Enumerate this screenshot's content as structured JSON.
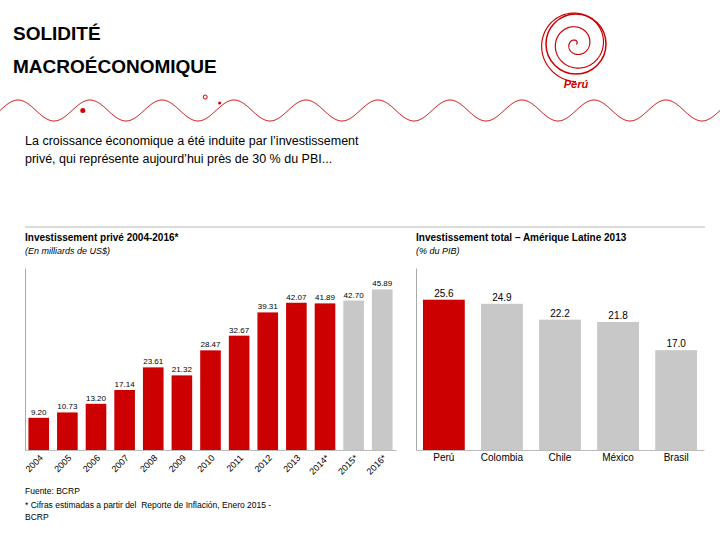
{
  "title": "SOLIDITÉ\nMACROÉCONOMIQUE",
  "subtitle": "La croissance économique a été induite par l’investissement\nprivé, qui représente aujourd’hui près de 30 % du PBI...",
  "annotations": [
    "Perú"
  ],
  "footnotes": [
    "Fuente: BCRP",
    "* Cifras estimadas a partir del  Reporte de Inflación, Enero 2015 -\nBCRP"
  ],
  "chart_data": [
    {
      "type": "bar",
      "title": "Investissement privé 2004-2016*",
      "subtitle": "(En milliards de US$)",
      "categories": [
        "2004",
        "2005",
        "2006",
        "2007",
        "2008",
        "2009",
        "2010",
        "2011",
        "2012",
        "2013",
        "2014*",
        "2015*",
        "2016*"
      ],
      "values": [
        9.2,
        10.73,
        13.2,
        17.14,
        23.61,
        21.32,
        28.47,
        32.67,
        39.31,
        42.07,
        41.89,
        42.7,
        45.89
      ],
      "value_labels": [
        "9.20",
        "10.73",
        "13.20",
        "17.14",
        "23.61",
        "21.32",
        "28.47",
        "32.67",
        "39.31",
        "42.07",
        "41.89",
        "42.70",
        "45.89"
      ],
      "colors": [
        "#cc0000",
        "#cc0000",
        "#cc0000",
        "#cc0000",
        "#cc0000",
        "#cc0000",
        "#cc0000",
        "#cc0000",
        "#cc0000",
        "#cc0000",
        "#cc0000",
        "#c8c8c8",
        "#c8c8c8"
      ],
      "ylim": [
        0,
        52
      ],
      "data_labels": true,
      "tick_labels": "x",
      "grid": false
    },
    {
      "type": "bar",
      "title": "Investissement total – Amérique Latine 2013",
      "subtitle": "(% du PIB)",
      "categories": [
        "Perú",
        "Colombia",
        "Chile",
        "México",
        "Brasil"
      ],
      "values": [
        25.6,
        24.9,
        22.2,
        21.8,
        17.0
      ],
      "value_labels": [
        "25.6",
        "24.9",
        "22.2",
        "21.8",
        "17.0"
      ],
      "colors": [
        "#cc0000",
        "#c8c8c8",
        "#c8c8c8",
        "#c8c8c8",
        "#c8c8c8"
      ],
      "ylim": [
        0,
        31
      ],
      "data_labels": true,
      "tick_labels": "x",
      "grid": false
    }
  ]
}
